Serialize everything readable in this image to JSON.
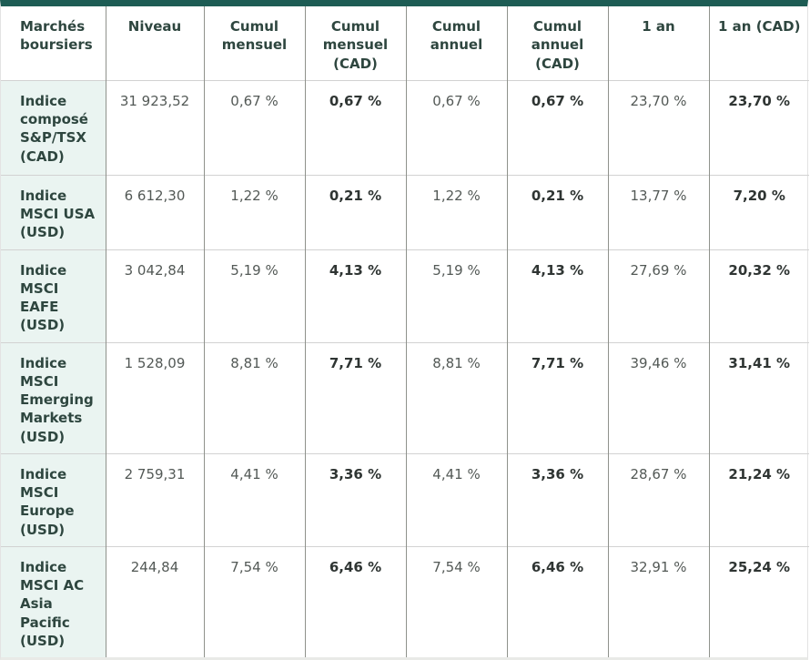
{
  "colors": {
    "accent_top_bar": "#1d5c54",
    "row_header_background": "#eaf4f1",
    "header_text": "#2e463f",
    "value_text": "#535956",
    "bold_value_text": "#2f3533",
    "column_divider": "#8f928c",
    "row_divider": "#d2d2d2"
  },
  "table": {
    "columns": [
      {
        "id": "marches",
        "label": "Marchés boursiers",
        "align": "left",
        "bold_values": false
      },
      {
        "id": "niveau",
        "label": "Niveau",
        "align": "center",
        "bold_values": false
      },
      {
        "id": "cumul_mensuel",
        "label": "Cumul mensuel",
        "align": "center",
        "bold_values": false
      },
      {
        "id": "cumul_mensuel_cad",
        "label": "Cumul mensuel (CAD)",
        "align": "center",
        "bold_values": true
      },
      {
        "id": "cumul_annuel",
        "label": "Cumul annuel",
        "align": "center",
        "bold_values": false
      },
      {
        "id": "cumul_annuel_cad",
        "label": "Cumul annuel (CAD)",
        "align": "center",
        "bold_values": true
      },
      {
        "id": "un_an",
        "label": "1 an",
        "align": "center",
        "bold_values": false
      },
      {
        "id": "un_an_cad",
        "label": "1 an (CAD)",
        "align": "center",
        "bold_values": true
      }
    ],
    "rows": [
      {
        "label": "Indice composé S&P/TSX (CAD)",
        "values": [
          "31 923,52",
          "0,67 %",
          "0,67 %",
          "0,67 %",
          "0,67 %",
          "23,70 %",
          "23,70 %"
        ]
      },
      {
        "label": "Indice MSCI USA (USD)",
        "values": [
          "6 612,30",
          "1,22 %",
          "0,21 %",
          "1,22 %",
          "0,21 %",
          "13,77 %",
          "7,20 %"
        ]
      },
      {
        "label": "Indice MSCI EAFE (USD)",
        "values": [
          "3 042,84",
          "5,19 %",
          "4,13 %",
          "5,19 %",
          "4,13 %",
          "27,69 %",
          "20,32 %"
        ]
      },
      {
        "label": "Indice MSCI Emerging Markets (USD)",
        "values": [
          "1 528,09",
          "8,81 %",
          "7,71 %",
          "8,81 %",
          "7,71 %",
          "39,46 %",
          "31,41 %"
        ]
      },
      {
        "label": "Indice MSCI Europe (USD)",
        "values": [
          "2 759,31",
          "4,41 %",
          "3,36 %",
          "4,41 %",
          "3,36 %",
          "28,67 %",
          "21,24 %"
        ]
      },
      {
        "label": "Indice MSCI AC Asia Pacific (USD)",
        "values": [
          "244,84",
          "7,54 %",
          "6,46 %",
          "7,54 %",
          "6,46 %",
          "32,91 %",
          "25,24 %"
        ]
      }
    ]
  }
}
